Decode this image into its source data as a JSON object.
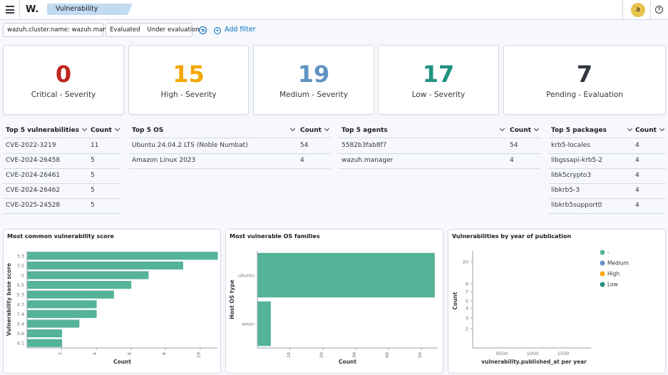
{
  "header": {
    "logo": "W.",
    "breadcrumb": "Vulnerability Detection",
    "avatar_letter": "a",
    "help_glyph": "?"
  },
  "filters": {
    "pills": [
      {
        "field": "wazuh.cluster.name: wazuh.manager"
      },
      {
        "a": "Evaluated",
        "b": "Under evaluation"
      }
    ],
    "add_filter_label": "Add filter"
  },
  "severity_cards": [
    {
      "value": "0",
      "label": "Critical - Severity",
      "color": "#bd271e"
    },
    {
      "value": "15",
      "label": "High - Severity",
      "color": "#f5a700"
    },
    {
      "value": "19",
      "label": "Medium - Severity",
      "color": "#6092c0"
    },
    {
      "value": "17",
      "label": "Low - Severity",
      "color": "#209280"
    },
    {
      "value": "7",
      "label": "Pending - Evaluation",
      "color": "#343741"
    }
  ],
  "tables": {
    "vulnerabilities": {
      "header": "Top 5 vulnerabilities",
      "count_header": "Count",
      "rows": [
        [
          "CVE-2022-3219",
          "11"
        ],
        [
          "CVE-2024-26458",
          "5"
        ],
        [
          "CVE-2024-26461",
          "5"
        ],
        [
          "CVE-2024-26462",
          "5"
        ],
        [
          "CVE-2025-24528",
          "5"
        ]
      ]
    },
    "os": {
      "header": "Top 5 OS",
      "count_header": "Count",
      "rows": [
        [
          "Ubuntu 24.04.2 LTS (Noble Numbat)",
          "54"
        ],
        [
          "Amazon Linux 2023",
          "4"
        ]
      ]
    },
    "agents": {
      "header": "Top 5 agents",
      "count_header": "Count",
      "rows": [
        [
          "5582b3fab8f7",
          "54"
        ],
        [
          "wazuh.manager",
          "4"
        ]
      ]
    },
    "packages": {
      "header": "Top 5 packages",
      "count_header": "Count",
      "rows": [
        [
          "krb5-locales",
          "4"
        ],
        [
          "libgssapi-krb5-2",
          "4"
        ],
        [
          "libk5crypto3",
          "4"
        ],
        [
          "libkrb5-3",
          "4"
        ],
        [
          "libkrb5support0",
          "4"
        ]
      ]
    }
  },
  "chart_data": [
    {
      "type": "bar",
      "orientation": "horizontal",
      "title": "Most common vulnerability score",
      "xlabel": "Count",
      "ylabel": "Vulnerability base score",
      "categories": [
        "3.3",
        "7.5",
        "-1",
        "5.5",
        "5.3",
        "4.7",
        "7.4",
        "3.4",
        "3.6",
        "4.1"
      ],
      "values": [
        11,
        9,
        7,
        6,
        5,
        4,
        4,
        3,
        2,
        2
      ],
      "xticks": [
        "2",
        "4",
        "6",
        "8",
        "10"
      ],
      "xlim": [
        0,
        11
      ],
      "color": "#54b399"
    },
    {
      "type": "bar",
      "orientation": "horizontal",
      "title": "Most vulnerable OS families",
      "xlabel": "Count",
      "ylabel": "Host OS type",
      "categories": [
        "ubuntu",
        "amzn"
      ],
      "values": [
        54,
        4
      ],
      "xticks": [
        "10",
        "20",
        "30",
        "40",
        "50"
      ],
      "xlim": [
        0,
        55
      ],
      "color": "#54b399"
    },
    {
      "type": "scatter",
      "title": "Vulnerabilities by year of publication",
      "xlabel": "vulnerability.published_at per year",
      "ylabel": "Count",
      "yticks": [
        "20",
        "9",
        "7",
        "5",
        "4",
        "3",
        "2"
      ],
      "xticks": [
        "0500",
        "1000",
        "1500"
      ],
      "legend": [
        {
          "label": "-",
          "color": "#54b399"
        },
        {
          "label": "Medium",
          "color": "#6092c0"
        },
        {
          "label": "High",
          "color": "#f5a700"
        },
        {
          "label": "Low",
          "color": "#209280"
        }
      ],
      "legend_position": "top-right"
    }
  ]
}
